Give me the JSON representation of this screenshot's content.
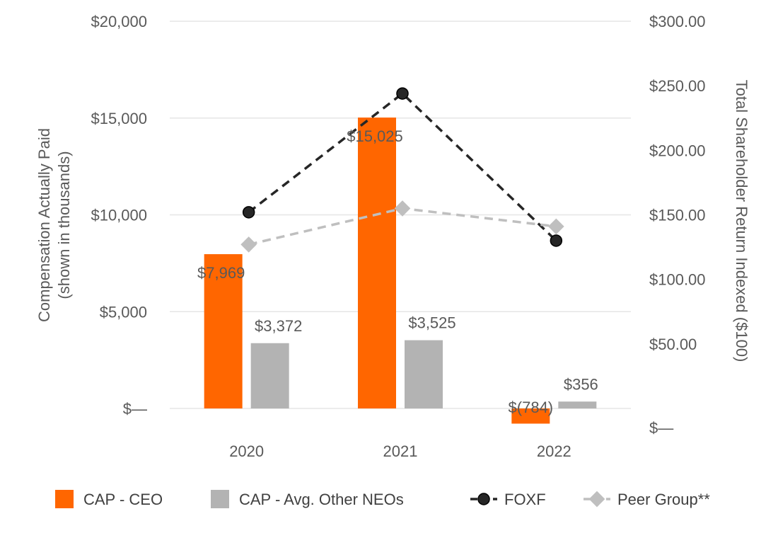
{
  "chart_data": {
    "type": "bar",
    "categories": [
      "2020",
      "2021",
      "2022"
    ],
    "series": [
      {
        "name": "CAP - CEO",
        "kind": "bar",
        "axis": "left",
        "values": [
          7969,
          15025,
          -784
        ],
        "labels": [
          "$7,969",
          "$15,025",
          "$(784)"
        ],
        "color": "#ff6600"
      },
      {
        "name": "CAP - Avg. Other NEOs",
        "kind": "bar",
        "axis": "left",
        "values": [
          3372,
          3525,
          356
        ],
        "labels": [
          "$3,372",
          "$3,525",
          "$356"
        ],
        "color": "#b3b3b3"
      },
      {
        "name": "FOXF",
        "kind": "line",
        "axis": "right",
        "values": [
          152,
          244,
          130
        ],
        "color": "#262626"
      },
      {
        "name": "Peer Group**",
        "kind": "line",
        "axis": "right",
        "values": [
          127,
          155,
          141
        ],
        "color": "#bfbfbf"
      }
    ],
    "y_left": {
      "title_line1": "Compensation Actually Paid",
      "title_line2": "(shown in thousands)",
      "ylim": [
        0,
        20000
      ],
      "ticks": [
        0,
        5000,
        10000,
        15000,
        20000
      ],
      "tick_labels": [
        "$—",
        "$5,000",
        "$10,000",
        "$15,000",
        "$20,000"
      ]
    },
    "y_right": {
      "title": "Total Shareholder Return Indexed ($100)",
      "ylim": [
        0,
        300
      ],
      "ticks": [
        0,
        50,
        100,
        150,
        200,
        250,
        300
      ],
      "tick_labels": [
        "$—",
        "$50.00",
        "$100.00",
        "$150.00",
        "$200.00",
        "$250.00",
        "$300.00"
      ]
    },
    "legend": [
      "CAP - CEO",
      "CAP - Avg. Other NEOs",
      "FOXF",
      "Peer Group**"
    ],
    "grid": true,
    "legend_position": "bottom"
  }
}
